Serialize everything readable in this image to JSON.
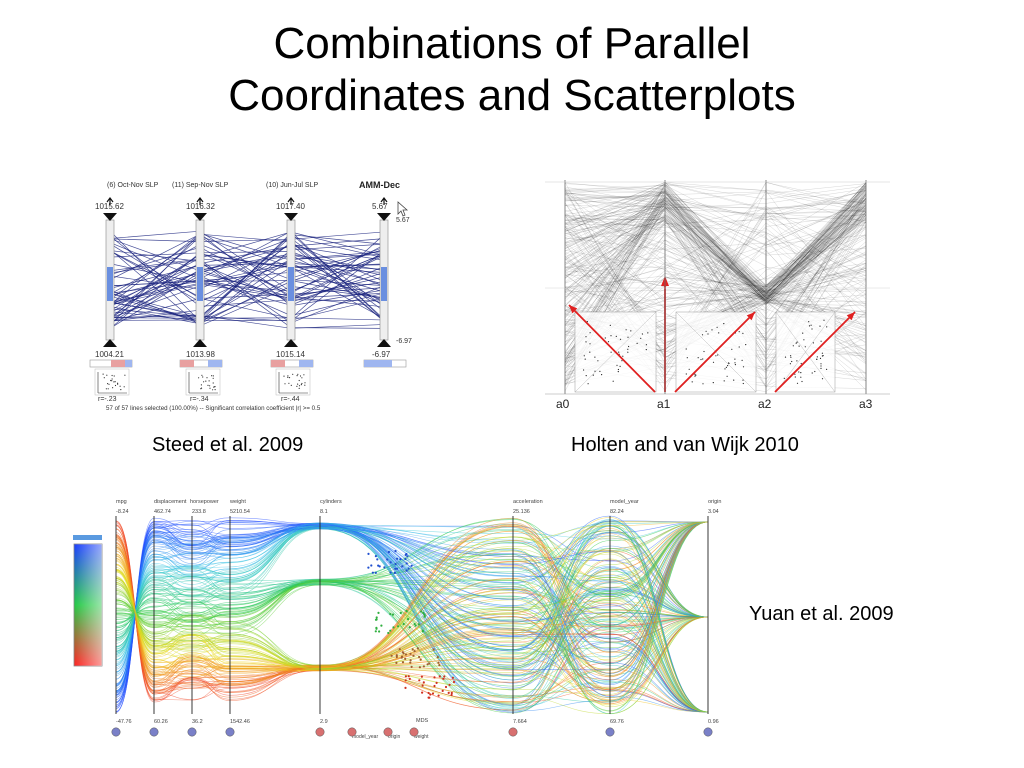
{
  "slide": {
    "title_line1": "Combinations of Parallel",
    "title_line2": "Coordinates and Scatterplots",
    "caption_steed": "Steed et al. 2009",
    "caption_holten": "Holten and van Wijk 2010",
    "caption_yuan": "Yuan et al. 2009"
  },
  "steed": {
    "axes": [
      {
        "name": "(6) Oct-Nov SLP",
        "top": "1015.62",
        "bottom": "1004.21",
        "r": "r=-.23"
      },
      {
        "name": "(11) Sep-Nov SLP",
        "top": "1016.32",
        "bottom": "1013.98",
        "r": "r=-.34"
      },
      {
        "name": "(10) Jun-Jul SLP",
        "top": "1017.40",
        "bottom": "1015.14",
        "r": "r=-.44"
      },
      {
        "name": "AMM-Dec",
        "top": "5.67",
        "bottom": "-6.97",
        "r": ""
      }
    ],
    "cursor_top": "5.67",
    "cursor_bottom": "-6.97",
    "status": "57 of 57 lines selected (100.00%)  --  Significant correlation coefficient  |r| >= 0.5"
  },
  "holten": {
    "axes": [
      "a0",
      "a1",
      "a2",
      "a3"
    ]
  },
  "yuan": {
    "axes": [
      {
        "name": "mpg",
        "top": "-8.24",
        "bottom": "-47.76"
      },
      {
        "name": "displacement",
        "top": "462.74",
        "bottom": "60.26"
      },
      {
        "name": "horsepower",
        "top": "233.8",
        "bottom": "36.2"
      },
      {
        "name": "weight",
        "top": "5210.54",
        "bottom": "1542.46"
      },
      {
        "name": "cylinders",
        "top": "8.1",
        "bottom": "2.9"
      },
      {
        "name": "acceleration",
        "top": "25.136",
        "bottom": "7.664"
      },
      {
        "name": "model_year",
        "top": "82.24",
        "bottom": "69.76"
      },
      {
        "name": "origin",
        "top": "3.04",
        "bottom": "0.96"
      }
    ],
    "mid_label": "MDS",
    "bottom_labels": [
      "model_year",
      "origin",
      "weight"
    ]
  },
  "colors": {
    "arrow": "#e02020",
    "steed_line": "#1a237e",
    "steed_select": "#6a8fe0"
  }
}
